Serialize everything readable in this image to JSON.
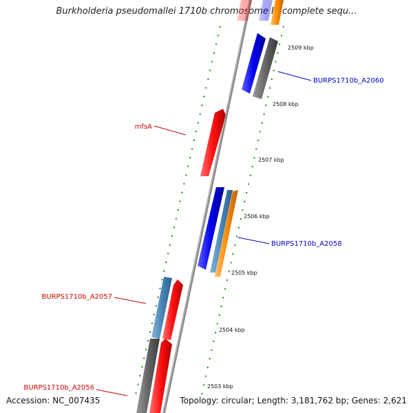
{
  "title": "Burkholderia pseudomallei 1710b chromosome II, complete sequ...",
  "accession": {
    "label": "Accession:",
    "value": "NC_007435"
  },
  "topology_line": "Topology: circular; Length: 3,181,762 bp; Genes: 2,621",
  "scale_ticks": [
    "2503 kbp",
    "2504 kbp",
    "2505 kbp",
    "2506 kbp",
    "2507 kbp",
    "2508 kbp",
    "2509 kbp"
  ],
  "gene_labels": [
    {
      "text": "BURPS1710b_A2060",
      "color": "#0000c0"
    },
    {
      "text": "mfsA",
      "color": "#d00000"
    },
    {
      "text": "BURPS1710b_A2058",
      "color": "#0000c0"
    },
    {
      "text": "BURPS1710b_A2057",
      "color": "#d00000"
    },
    {
      "text": "BURPS1710b_A2056",
      "color": "#d00000"
    }
  ],
  "colors": {
    "forward_gene": "#ff1010",
    "reverse_gene": "#0000ee",
    "cds_gray": "#666666",
    "steelblue_feature": "#4a86b8",
    "orange_feature": "#ff8c00",
    "dotted_guide": "#138a13",
    "backbone": "#8a8a8a"
  }
}
